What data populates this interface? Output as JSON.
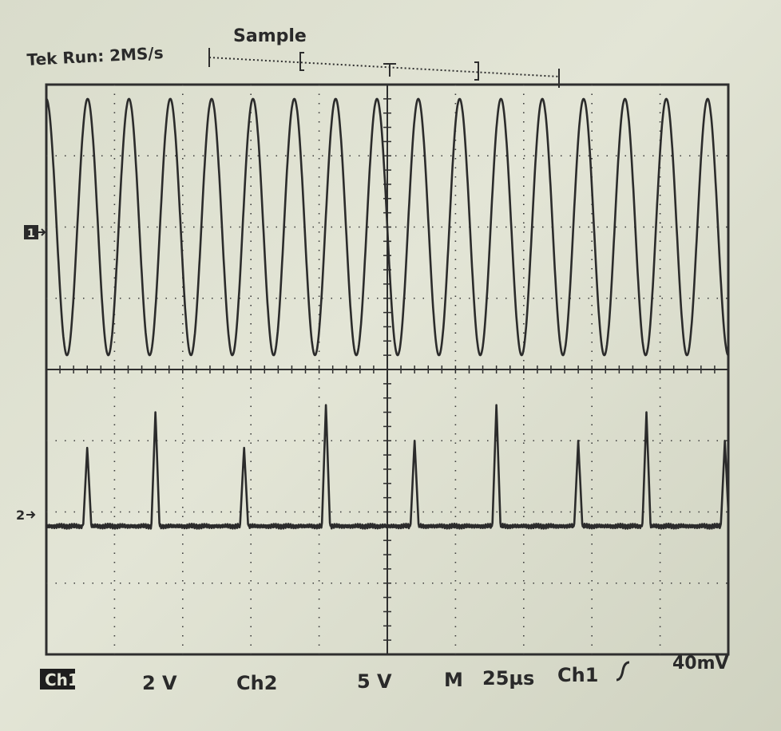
{
  "header": {
    "status": "Tek Run: 2MS/s",
    "mode": "Sample"
  },
  "markers": {
    "ch1_marker": "1",
    "ch2_marker": "2"
  },
  "footer": {
    "ch1_label": "Ch1",
    "ch1_scale": "2 V",
    "ch2_label": "Ch2",
    "ch2_scale": "5 V",
    "time_label": "M",
    "time_scale": "25µs",
    "trigger_source": "Ch1",
    "trigger_slope_icon": "rising-edge-icon",
    "trigger_level": "40mV"
  },
  "colors": {
    "screen": "#e3e5d6",
    "trace": "#2b2b2b"
  },
  "chart_data": {
    "type": "line",
    "grid": true,
    "x_divisions": 10,
    "y_divisions": 8,
    "series": [
      {
        "name": "Ch1",
        "waveform": "sine",
        "cycles_on_screen": 16.5,
        "amplitude_div": 1.8,
        "center_div": 2
      },
      {
        "name": "Ch2",
        "waveform": "pulse",
        "baseline_div": -2.2,
        "pulse_times_div": [
          0.6,
          1.6,
          2.9,
          4.1,
          5.4,
          6.6,
          7.8,
          8.8,
          9.95
        ],
        "pulse_heights_div": [
          1.1,
          1.6,
          1.1,
          1.7,
          1.2,
          1.7,
          1.2,
          1.6,
          1.2
        ]
      }
    ]
  }
}
